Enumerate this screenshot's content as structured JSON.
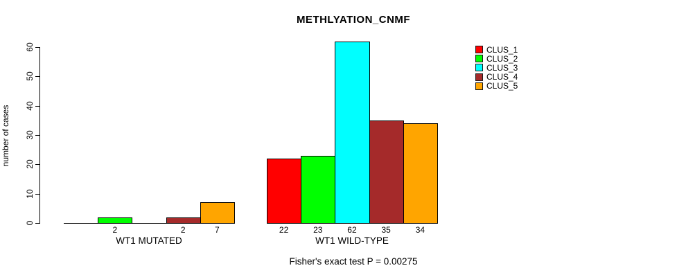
{
  "title": "METHLYATION_CNMF",
  "footer": "Fisher's exact test P = 0.00275",
  "chart_data": {
    "type": "bar",
    "title": "METHLYATION_CNMF",
    "xlabel": "",
    "ylabel": "number of cases",
    "ylim": [
      0,
      62
    ],
    "yticks": [
      0,
      10,
      20,
      30,
      40,
      50,
      60
    ],
    "grid": false,
    "legend_position": "top-right",
    "categories": [
      "WT1 MUTATED",
      "WT1 WILD-TYPE"
    ],
    "series": [
      {
        "name": "CLUS_1",
        "color": "#FF0000",
        "values": [
          0,
          22
        ]
      },
      {
        "name": "CLUS_2",
        "color": "#00FF00",
        "values": [
          2,
          23
        ]
      },
      {
        "name": "CLUS_3",
        "color": "#00FFFF",
        "values": [
          0,
          62
        ]
      },
      {
        "name": "CLUS_4",
        "color": "#A52A2A",
        "values": [
          2,
          35
        ]
      },
      {
        "name": "CLUS_5",
        "color": "#FFA500",
        "values": [
          7,
          34
        ]
      }
    ],
    "bar_value_labels_shown_for_nonzero_only": true,
    "annotation": "Fisher's exact test P = 0.00275"
  }
}
